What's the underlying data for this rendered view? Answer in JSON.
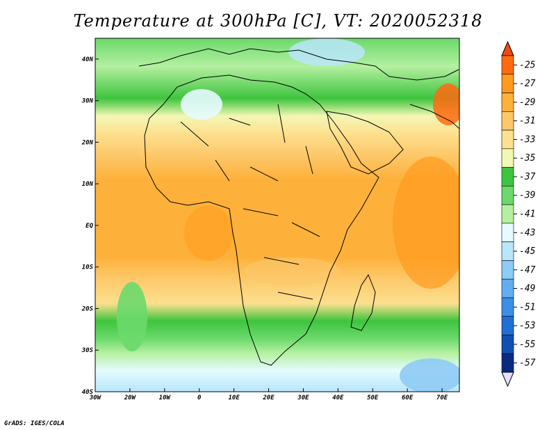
{
  "title": "Temperature at 300hPa [C], VT: 2020052318",
  "footer": "GrADS: IGES/COLA",
  "map": {
    "projection": "latlon",
    "lon_range": [
      -30,
      75
    ],
    "lat_range": [
      -40,
      45
    ],
    "lon_ticks": [
      {
        "value": -30,
        "label": "30W"
      },
      {
        "value": -20,
        "label": "20W"
      },
      {
        "value": -10,
        "label": "10W"
      },
      {
        "value": 0,
        "label": "0"
      },
      {
        "value": 10,
        "label": "10E"
      },
      {
        "value": 20,
        "label": "20E"
      },
      {
        "value": 30,
        "label": "30E"
      },
      {
        "value": 40,
        "label": "40E"
      },
      {
        "value": 50,
        "label": "50E"
      },
      {
        "value": 60,
        "label": "60E"
      },
      {
        "value": 70,
        "label": "70E"
      }
    ],
    "lat_ticks": [
      {
        "value": 40,
        "label": "40N"
      },
      {
        "value": 30,
        "label": "30N"
      },
      {
        "value": 20,
        "label": "20N"
      },
      {
        "value": 10,
        "label": "10N"
      },
      {
        "value": 0,
        "label": "EQ"
      },
      {
        "value": -10,
        "label": "10S"
      },
      {
        "value": -20,
        "label": "20S"
      },
      {
        "value": -30,
        "label": "30S"
      },
      {
        "value": -40,
        "label": "40S"
      }
    ]
  },
  "colorbar": {
    "levels": [
      {
        "label": "-25",
        "color": "#ff6a10"
      },
      {
        "label": "-27",
        "color": "#ff9a1e"
      },
      {
        "label": "-29",
        "color": "#fdb13b"
      },
      {
        "label": "-31",
        "color": "#fdc86a"
      },
      {
        "label": "-33",
        "color": "#fde08f"
      },
      {
        "label": "-35",
        "color": "#f3f7b4"
      },
      {
        "label": "-37",
        "color": "#3ec43e"
      },
      {
        "label": "-39",
        "color": "#6bd96b"
      },
      {
        "label": "-41",
        "color": "#b4f0a0"
      },
      {
        "label": "-43",
        "color": "#e6fbff"
      },
      {
        "label": "-45",
        "color": "#b8e6fb"
      },
      {
        "label": "-47",
        "color": "#8ecbf5"
      },
      {
        "label": "-49",
        "color": "#62aef0"
      },
      {
        "label": "-51",
        "color": "#3c8ee6"
      },
      {
        "label": "-53",
        "color": "#1f6fd4"
      },
      {
        "label": "-55",
        "color": "#1250b0"
      },
      {
        "label": "-57",
        "color": "#0a2a80"
      }
    ],
    "top_arrow_color": "#f04a14",
    "bottom_arrow_color": "#e6e0ff"
  }
}
